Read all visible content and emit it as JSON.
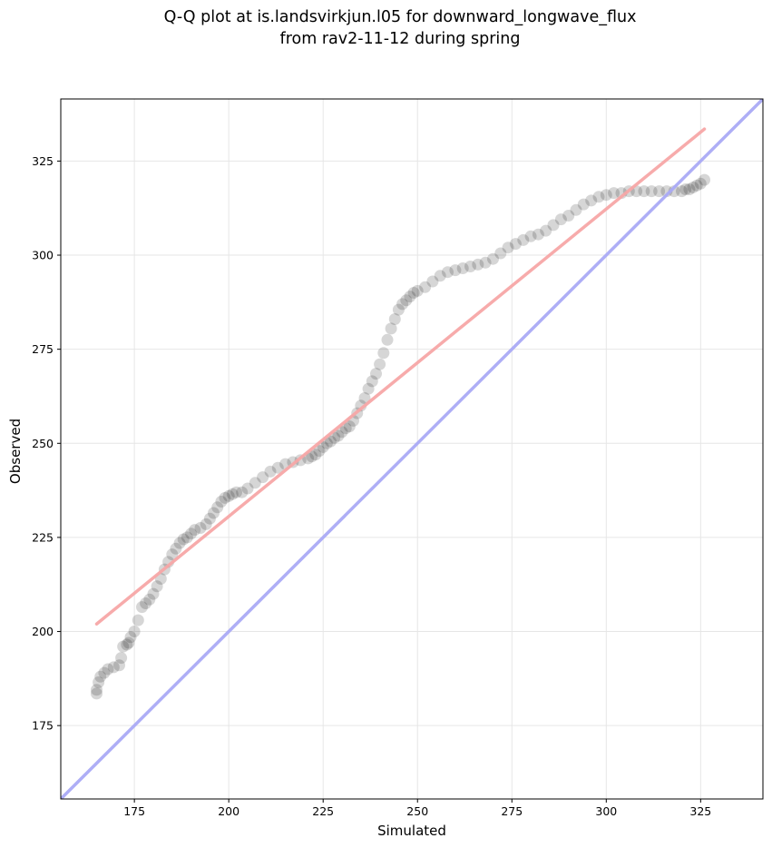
{
  "chart_data": {
    "type": "scatter",
    "title": "Q-Q plot at is.landsvirkjun.l05 for downward_longwave_flux",
    "subtitle": "from rav2-11-12 during spring",
    "xlabel": "Simulated",
    "ylabel": "Observed",
    "xlim": [
      155.5,
      341.5
    ],
    "ylim": [
      155.5,
      341.5
    ],
    "xticks": [
      175,
      200,
      225,
      250,
      275,
      300,
      325
    ],
    "yticks": [
      175,
      200,
      225,
      250,
      275,
      300,
      325
    ],
    "grid": true,
    "colors": {
      "points": "#000000",
      "fit_line": "#f7a6a6",
      "identity_line": "#aaaaf5",
      "grid": "#e6e6e6"
    },
    "fit_line": {
      "x": [
        165,
        326
      ],
      "y": [
        202,
        333.5
      ]
    },
    "identity_line": {
      "x": [
        155.5,
        341.5
      ],
      "y": [
        155.5,
        341.5
      ]
    },
    "series": [
      {
        "name": "quantiles",
        "x": [
          165,
          165,
          165.5,
          166,
          167,
          168,
          169.5,
          171,
          171.5,
          172,
          173,
          173.5,
          174,
          175,
          176,
          177,
          178,
          179,
          180,
          181,
          182,
          183,
          184,
          185,
          186,
          187,
          188,
          189,
          190,
          191,
          192.5,
          194,
          195,
          196,
          197,
          198,
          199,
          200,
          201,
          202,
          203.5,
          205,
          207,
          209,
          211,
          213,
          215,
          217,
          219,
          221,
          222,
          223,
          224,
          225,
          226,
          227,
          228,
          229,
          230,
          231,
          232,
          233,
          234,
          235,
          236,
          237,
          238,
          239,
          240,
          241,
          242,
          243,
          244,
          245,
          246,
          247,
          248,
          249,
          250,
          252,
          254,
          256,
          258,
          260,
          262,
          264,
          266,
          268,
          270,
          272,
          274,
          276,
          278,
          280,
          282,
          284,
          286,
          288,
          290,
          292,
          294,
          296,
          298,
          300,
          302,
          304,
          306,
          308,
          310,
          312,
          314,
          316,
          318,
          320,
          321,
          322,
          323,
          324,
          325,
          326
        ],
        "y": [
          183.5,
          184.5,
          186.5,
          188,
          189,
          190,
          190.5,
          191,
          193,
          196,
          196.5,
          197,
          198.5,
          200,
          203,
          206.5,
          207.5,
          208.5,
          210,
          212,
          214,
          216.5,
          218.5,
          220.5,
          222,
          223.5,
          224.5,
          225,
          226,
          227,
          227.5,
          228.5,
          230,
          231.5,
          233,
          234.5,
          235.5,
          236,
          236.5,
          237,
          237,
          238,
          239.5,
          241,
          242.5,
          243.5,
          244.5,
          245,
          245.5,
          246,
          246.5,
          247,
          248,
          249,
          250,
          250.5,
          251.5,
          252,
          253,
          254,
          254.5,
          256,
          258,
          260,
          262,
          264.5,
          266.5,
          268.5,
          271,
          274,
          277.5,
          280.5,
          283,
          285.5,
          287,
          288,
          289,
          290,
          290.5,
          291.5,
          293,
          294.5,
          295.5,
          296,
          296.5,
          297,
          297.5,
          298,
          299,
          300.5,
          302,
          303,
          304,
          305,
          305.5,
          306.5,
          308,
          309.5,
          310.5,
          312,
          313.5,
          314.5,
          315.5,
          316,
          316.5,
          316.5,
          317,
          317,
          317,
          317,
          317,
          317,
          317,
          317,
          317.5,
          317.5,
          318,
          318.5,
          319,
          320
        ]
      }
    ]
  }
}
